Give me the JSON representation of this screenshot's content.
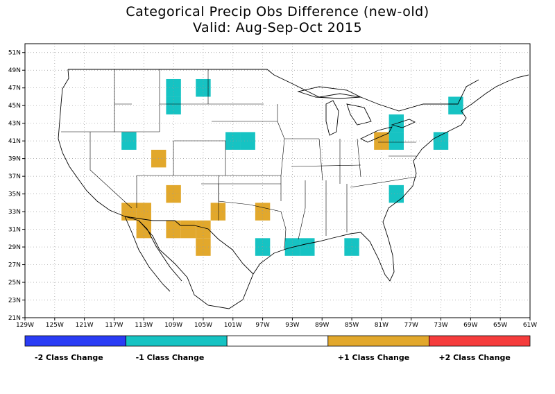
{
  "title": "Categorical Precip Obs Difference (new-old)",
  "subtitle": "Valid: Aug-Sep-Oct 2015",
  "map": {
    "lon_range": [
      -129,
      -61
    ],
    "lat_range": [
      21,
      52
    ],
    "gridlines": "dotted",
    "x_ticks": [
      "129W",
      "125W",
      "121W",
      "117W",
      "113W",
      "109W",
      "105W",
      "101W",
      "97W",
      "93W",
      "89W",
      "85W",
      "81W",
      "77W",
      "73W",
      "69W",
      "65W",
      "61W"
    ],
    "y_ticks": [
      "21N",
      "23N",
      "25N",
      "27N",
      "29N",
      "31N",
      "33N",
      "35N",
      "37N",
      "39N",
      "41N",
      "43N",
      "45N",
      "47N",
      "49N",
      "51N"
    ]
  },
  "colors": {
    "minus2": "#2a3cf5",
    "minus1": "#16c3c3",
    "zero": "#ffffff",
    "plus1": "#e2a82c",
    "plus2": "#f53c3c",
    "outline": "#000000"
  },
  "legend": [
    {
      "label": "-2 Class Change",
      "color": "#2a3cf5"
    },
    {
      "label": "-1 Class Change",
      "color": "#16c3c3"
    },
    {
      "label": "",
      "color": "#ffffff"
    },
    {
      "label": "+1 Class Change",
      "color": "#e2a82c"
    },
    {
      "label": "+2 Class Change",
      "color": "#f53c3c"
    }
  ],
  "cells": [
    {
      "lon": -109,
      "lat": 47,
      "category": -1
    },
    {
      "lon": -109,
      "lat": 45,
      "category": -1
    },
    {
      "lon": -105,
      "lat": 47,
      "category": -1
    },
    {
      "lon": -115,
      "lat": 41,
      "category": -1
    },
    {
      "lon": -101,
      "lat": 41,
      "category": -1
    },
    {
      "lon": -99,
      "lat": 41,
      "category": -1
    },
    {
      "lon": -79,
      "lat": 43,
      "category": -1
    },
    {
      "lon": -79,
      "lat": 41,
      "category": -1
    },
    {
      "lon": -73,
      "lat": 41,
      "category": -1
    },
    {
      "lon": -71,
      "lat": 45,
      "category": -1
    },
    {
      "lon": -79,
      "lat": 35,
      "category": -1
    },
    {
      "lon": -97,
      "lat": 29,
      "category": -1
    },
    {
      "lon": -93,
      "lat": 29,
      "category": -1
    },
    {
      "lon": -91,
      "lat": 29,
      "category": -1
    },
    {
      "lon": -85,
      "lat": 29,
      "category": -1
    },
    {
      "lon": -81,
      "lat": 41,
      "category": 1
    },
    {
      "lon": -111,
      "lat": 39,
      "category": 1
    },
    {
      "lon": -109,
      "lat": 35,
      "category": 1
    },
    {
      "lon": -115,
      "lat": 33,
      "category": 1
    },
    {
      "lon": -113,
      "lat": 33,
      "category": 1
    },
    {
      "lon": -113,
      "lat": 31,
      "category": 1
    },
    {
      "lon": -109,
      "lat": 31,
      "category": 1
    },
    {
      "lon": -107,
      "lat": 31,
      "category": 1
    },
    {
      "lon": -105,
      "lat": 31,
      "category": 1
    },
    {
      "lon": -105,
      "lat": 29,
      "category": 1
    },
    {
      "lon": -103,
      "lat": 33,
      "category": 1
    },
    {
      "lon": -97,
      "lat": 33,
      "category": 1
    }
  ]
}
